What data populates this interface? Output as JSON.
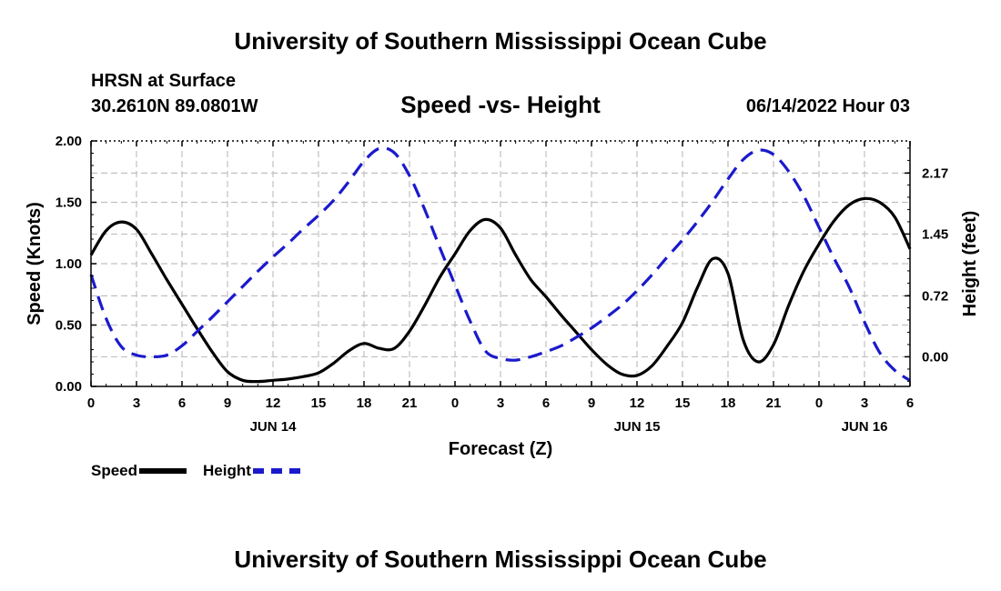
{
  "header": {
    "title": "University of Southern Mississippi Ocean Cube",
    "station": "HRSN at Surface",
    "coords": "30.2610N  89.0801W",
    "subtitle": "Speed -vs- Height",
    "datestamp": "06/14/2022 Hour 03"
  },
  "footer": {
    "title": "University of Southern Mississippi Ocean Cube"
  },
  "legend": {
    "speed": "Speed",
    "height": "Height"
  },
  "colors": {
    "speed": "#000000",
    "height": "#1a1acc",
    "grid": "#c0c0c0"
  },
  "chart_data": {
    "type": "line",
    "title": "Speed -vs- Height",
    "xlabel": "Forecast (Z)",
    "ylabel": "Speed (Knots)",
    "y2label": "Height (feet)",
    "xlim": [
      0,
      54
    ],
    "ylim": [
      0,
      2.0
    ],
    "y2lim": [
      -0.35,
      2.55
    ],
    "x_ticks": [
      0,
      3,
      6,
      9,
      12,
      15,
      18,
      21,
      24,
      27,
      30,
      33,
      36,
      39,
      42,
      45,
      48,
      51,
      54
    ],
    "x_tick_labels": [
      "0",
      "3",
      "6",
      "9",
      "12",
      "15",
      "18",
      "21",
      "0",
      "3",
      "6",
      "9",
      "12",
      "15",
      "18",
      "21",
      "0",
      "3",
      "6"
    ],
    "date_labels": [
      {
        "x": 12,
        "label": "JUN 14"
      },
      {
        "x": 36,
        "label": "JUN 15"
      },
      {
        "x": 51,
        "label": "JUN 16"
      }
    ],
    "y_ticks": [
      0.0,
      0.5,
      1.0,
      1.5,
      2.0
    ],
    "y_tick_labels": [
      "0.00",
      "0.50",
      "1.00",
      "1.50",
      "2.00"
    ],
    "y2_ticks": [
      0.0,
      0.72,
      1.45,
      2.17
    ],
    "y2_tick_labels": [
      "0.00",
      "0.72",
      "1.45",
      "2.17"
    ],
    "grid": true,
    "series": [
      {
        "name": "Speed",
        "axis": "left",
        "style": "solid",
        "x": [
          0,
          1,
          2,
          3,
          4,
          5,
          6,
          7,
          8,
          9,
          10,
          11,
          12,
          13,
          14,
          15,
          16,
          17,
          18,
          19,
          20,
          21,
          22,
          23,
          24,
          25,
          26,
          27,
          28,
          29,
          30,
          31,
          32,
          33,
          34,
          35,
          36,
          37,
          38,
          39,
          40,
          41,
          42,
          43,
          44,
          45,
          46,
          47,
          48,
          49,
          50,
          51,
          52,
          53,
          54
        ],
        "values": [
          1.07,
          1.27,
          1.34,
          1.28,
          1.08,
          0.87,
          0.67,
          0.47,
          0.28,
          0.12,
          0.05,
          0.04,
          0.05,
          0.06,
          0.08,
          0.11,
          0.19,
          0.29,
          0.35,
          0.31,
          0.31,
          0.45,
          0.66,
          0.89,
          1.08,
          1.27,
          1.36,
          1.29,
          1.07,
          0.87,
          0.73,
          0.58,
          0.44,
          0.3,
          0.18,
          0.1,
          0.09,
          0.17,
          0.33,
          0.52,
          0.81,
          1.04,
          0.92,
          0.38,
          0.2,
          0.34,
          0.66,
          0.94,
          1.16,
          1.35,
          1.48,
          1.53,
          1.5,
          1.38,
          1.12
        ]
      },
      {
        "name": "Height",
        "axis": "right",
        "style": "dashed",
        "x": [
          0,
          1,
          2,
          3,
          4,
          5,
          6,
          7,
          8,
          9,
          10,
          11,
          12,
          13,
          14,
          15,
          16,
          17,
          18,
          19,
          20,
          21,
          22,
          23,
          24,
          25,
          26,
          27,
          28,
          29,
          30,
          31,
          32,
          33,
          34,
          35,
          36,
          37,
          38,
          39,
          40,
          41,
          42,
          43,
          44,
          45,
          46,
          47,
          48,
          49,
          50,
          51,
          52,
          53,
          54
        ],
        "values": [
          0.97,
          0.45,
          0.12,
          0.02,
          0.0,
          0.02,
          0.13,
          0.3,
          0.47,
          0.65,
          0.83,
          1.01,
          1.18,
          1.34,
          1.51,
          1.67,
          1.85,
          2.07,
          2.31,
          2.46,
          2.41,
          2.14,
          1.74,
          1.29,
          0.85,
          0.42,
          0.07,
          -0.02,
          -0.04,
          0.0,
          0.06,
          0.13,
          0.23,
          0.34,
          0.47,
          0.61,
          0.78,
          0.97,
          1.18,
          1.38,
          1.6,
          1.84,
          2.1,
          2.33,
          2.44,
          2.39,
          2.19,
          1.9,
          1.53,
          1.16,
          0.82,
          0.41,
          0.05,
          -0.16,
          -0.28
        ]
      }
    ]
  }
}
